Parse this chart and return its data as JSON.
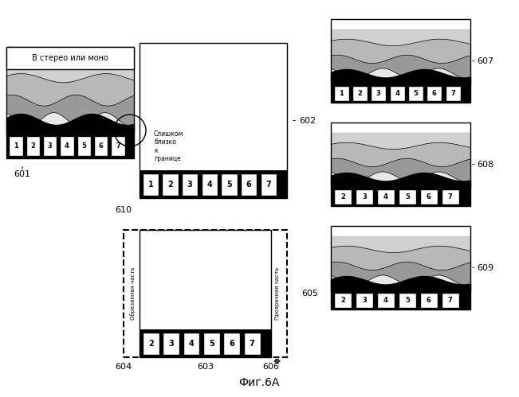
{
  "title": "Фиг.6А",
  "bg_color": "#ffffff",
  "panel_border_color": "#000000",
  "label_601": "601",
  "label_602": "602",
  "label_603": "603",
  "label_604": "604",
  "label_605": "605",
  "label_606": "606",
  "label_607": "607",
  "label_608": "608",
  "label_609": "609",
  "label_610": "610",
  "text_stereo": "В стерео или моно",
  "text_too_close": "Слишком\nблизко\nк\nгранице",
  "text_cropped": "Обрезанная часть",
  "text_transparent": "Прозрачная часть",
  "numbers_1_7": [
    "1",
    "2",
    "3",
    "4",
    "5",
    "6",
    "7"
  ],
  "numbers_2_7": [
    "2",
    "3",
    "4",
    "5",
    "6",
    "7"
  ]
}
